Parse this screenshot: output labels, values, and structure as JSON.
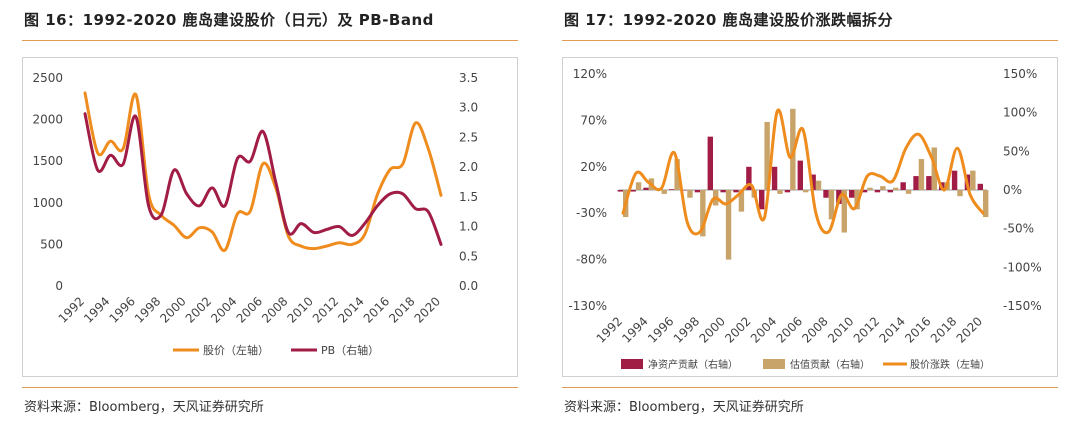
{
  "left": {
    "title": "图 16：1992-2020 鹿岛建设股价（日元）及 PB-Band",
    "source": "资料来源：Bloomberg，天风证券研究所"
  },
  "right": {
    "title": "图 17：1992-2020 鹿岛建设股价涨跌幅拆分",
    "source": "资料来源：Bloomberg，天风证券研究所"
  },
  "chart_data": [
    {
      "type": "line",
      "title": "图 16：1992-2020 鹿岛建设股价（日元）及 PB-Band",
      "x": [
        1992,
        1993,
        1994,
        1995,
        1996,
        1997,
        1998,
        1999,
        2000,
        2001,
        2002,
        2003,
        2004,
        2005,
        2006,
        2007,
        2008,
        2009,
        2010,
        2011,
        2012,
        2013,
        2014,
        2015,
        2016,
        2017,
        2018,
        2019,
        2020
      ],
      "x_tick_labels": [
        "1992",
        "1994",
        "1996",
        "1998",
        "2000",
        "2002",
        "2004",
        "2006",
        "2008",
        "2010",
        "2012",
        "2014",
        "2016",
        "2018",
        "2020"
      ],
      "y_left_ticks": [
        "0",
        "500",
        "1000",
        "1500",
        "2000",
        "2500"
      ],
      "y_right_ticks": [
        "0.0",
        "0.5",
        "1.0",
        "1.5",
        "2.0",
        "2.5",
        "3.0",
        "3.5"
      ],
      "ylim_left": [
        0,
        2500
      ],
      "ylim_right": [
        0,
        3.5
      ],
      "grid": false,
      "legend_position": "bottom",
      "series": [
        {
          "name": "股价（左轴）",
          "axis": "left",
          "color": "#ef8c1e",
          "values": [
            2320,
            1600,
            1740,
            1650,
            2300,
            1100,
            850,
            730,
            580,
            700,
            650,
            430,
            870,
            900,
            1470,
            1180,
            600,
            480,
            450,
            480,
            520,
            500,
            620,
            1100,
            1400,
            1470,
            1960,
            1650,
            1090
          ]
        },
        {
          "name": "PB（右轴）",
          "axis": "right",
          "color": "#a11d46",
          "values": [
            2.9,
            1.95,
            2.2,
            2.05,
            2.85,
            1.35,
            1.2,
            1.95,
            1.55,
            1.35,
            1.65,
            1.35,
            2.15,
            2.1,
            2.6,
            1.75,
            0.9,
            1.05,
            0.9,
            0.95,
            1.0,
            0.85,
            1.05,
            1.35,
            1.55,
            1.55,
            1.3,
            1.25,
            0.7
          ]
        }
      ]
    },
    {
      "type": "bar",
      "title": "图 17：1992-2020 鹿岛建设股价涨跌幅拆分",
      "x": [
        1992,
        1993,
        1994,
        1995,
        1996,
        1997,
        1998,
        1999,
        2000,
        2001,
        2002,
        2003,
        2004,
        2005,
        2006,
        2007,
        2008,
        2009,
        2010,
        2011,
        2012,
        2013,
        2014,
        2015,
        2016,
        2017,
        2018,
        2019,
        2020
      ],
      "x_tick_labels": [
        "1992",
        "1994",
        "1996",
        "1998",
        "2000",
        "2002",
        "2004",
        "2006",
        "2008",
        "2010",
        "2012",
        "2014",
        "2016",
        "2018",
        "2020"
      ],
      "y_left_ticks": [
        "120%",
        "70%",
        "20%",
        "-30%",
        "-80%",
        "-130%"
      ],
      "y_right_ticks": [
        "150%",
        "100%",
        "50%",
        "0%",
        "-50%",
        "-100%",
        "-150%"
      ],
      "ylim_left": [
        -130,
        120
      ],
      "ylim_right": [
        -150,
        150
      ],
      "grid": false,
      "legend_position": "bottom",
      "series": [
        {
          "name": "净资产贡献（右轴）",
          "axis": "right",
          "kind": "bar",
          "color": "#a11d46",
          "values": [
            -2,
            -2,
            3,
            2,
            1,
            0,
            -3,
            69,
            -3,
            -3,
            30,
            -25,
            30,
            -3,
            38,
            20,
            -10,
            -18,
            -10,
            -3,
            -3,
            -3,
            10,
            18,
            18,
            10,
            25,
            20,
            8
          ]
        },
        {
          "name": "估值贡献（右轴）",
          "axis": "right",
          "kind": "bar",
          "color": "#c8a46a",
          "values": [
            -35,
            10,
            15,
            -5,
            40,
            -10,
            -60,
            -20,
            -90,
            -28,
            -10,
            88,
            -5,
            105,
            -3,
            12,
            -38,
            -55,
            -25,
            3,
            5,
            3,
            -5,
            40,
            55,
            10,
            -8,
            25,
            -35
          ]
        },
        {
          "name": "股价涨跌（左轴）",
          "axis": "left",
          "kind": "line",
          "color": "#ef8c1e",
          "values": [
            -30,
            13,
            3,
            -3,
            35,
            -40,
            -50,
            -15,
            -20,
            -10,
            0,
            -35,
            80,
            30,
            60,
            -30,
            -50,
            -10,
            -25,
            10,
            10,
            5,
            40,
            55,
            30,
            -5,
            40,
            -10,
            -30
          ]
        }
      ]
    }
  ]
}
